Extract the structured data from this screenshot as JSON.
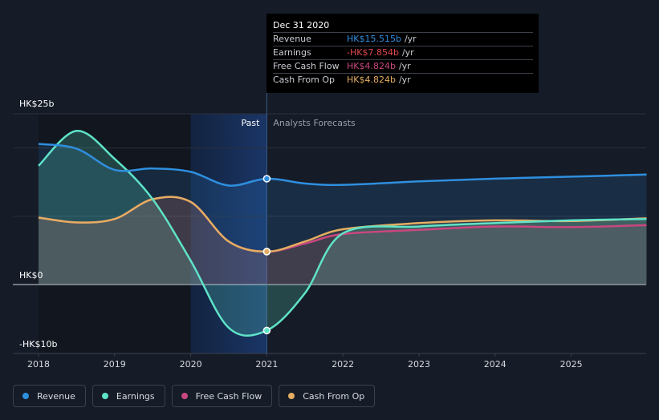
{
  "chart_data": {
    "type": "line",
    "x_ticks": [
      "2018",
      "2019",
      "2020",
      "2021",
      "2022",
      "2023",
      "2024",
      "2025"
    ],
    "y_tick_labels": [
      "HK$25b",
      "HK$0",
      "-HK$10b"
    ],
    "ylim": [
      -10,
      25
    ],
    "xlim": [
      2018,
      2025.99
    ],
    "divider_year": 2021,
    "past_label": "Past",
    "forecast_label": "Analysts Forecasts",
    "series": [
      {
        "name": "Revenue",
        "color": "#2f8fdf",
        "points": [
          [
            2018,
            20.6
          ],
          [
            2018.5,
            19.9
          ],
          [
            2019,
            16.8
          ],
          [
            2019.5,
            17.0
          ],
          [
            2020,
            16.5
          ],
          [
            2020.5,
            14.5
          ],
          [
            2021,
            15.5
          ],
          [
            2021.5,
            14.8
          ],
          [
            2022,
            14.6
          ],
          [
            2023,
            15.1
          ],
          [
            2024,
            15.5
          ],
          [
            2025,
            15.8
          ],
          [
            2025.99,
            16.1
          ]
        ]
      },
      {
        "name": "Earnings",
        "color": "#5fe3c8",
        "points": [
          [
            2018,
            17.4
          ],
          [
            2018.5,
            22.5
          ],
          [
            2019,
            18.4
          ],
          [
            2019.5,
            12.5
          ],
          [
            2020,
            3.5
          ],
          [
            2020.5,
            -7.4
          ],
          [
            2021,
            -7.854
          ],
          [
            2021.5,
            -1.5
          ],
          [
            2022,
            7.5
          ],
          [
            2023,
            8.5
          ],
          [
            2024,
            9.0
          ],
          [
            2025,
            9.4
          ],
          [
            2025.99,
            9.6
          ]
        ]
      },
      {
        "name": "Free Cash Flow",
        "color": "#c9477f",
        "points": [
          [
            2018,
            9.8
          ],
          [
            2018.5,
            9.1
          ],
          [
            2019,
            9.6
          ],
          [
            2019.5,
            12.5
          ],
          [
            2020,
            12.1
          ],
          [
            2020.5,
            6.3
          ],
          [
            2021,
            4.824
          ],
          [
            2021.5,
            6.0
          ],
          [
            2022,
            7.4
          ],
          [
            2023,
            8.0
          ],
          [
            2024,
            8.5
          ],
          [
            2025,
            8.4
          ],
          [
            2025.99,
            8.7
          ]
        ]
      },
      {
        "name": "Cash From Op",
        "color": "#e4ad62",
        "points": [
          [
            2018,
            9.8
          ],
          [
            2018.5,
            9.1
          ],
          [
            2019,
            9.6
          ],
          [
            2019.5,
            12.5
          ],
          [
            2020,
            12.1
          ],
          [
            2020.5,
            6.3
          ],
          [
            2021,
            4.824
          ],
          [
            2021.5,
            6.3
          ],
          [
            2022,
            8.1
          ],
          [
            2023,
            9.0
          ],
          [
            2024,
            9.4
          ],
          [
            2025,
            9.3
          ],
          [
            2025.99,
            9.7
          ]
        ]
      }
    ]
  },
  "tooltip": {
    "date": "Dec 31 2020",
    "unit": "/yr",
    "rows": [
      {
        "label": "Revenue",
        "value": "HK$15.515b",
        "color": "#2f8fdf"
      },
      {
        "label": "Earnings",
        "value": "-HK$7.854b",
        "color": "#e0474c"
      },
      {
        "label": "Free Cash Flow",
        "value": "HK$4.824b",
        "color": "#c9477f"
      },
      {
        "label": "Cash From Op",
        "value": "HK$4.824b",
        "color": "#e4ad62"
      }
    ]
  },
  "legend": [
    {
      "label": "Revenue",
      "color": "#2f8fdf"
    },
    {
      "label": "Earnings",
      "color": "#5fe3c8"
    },
    {
      "label": "Free Cash Flow",
      "color": "#c9477f"
    },
    {
      "label": "Cash From Op",
      "color": "#e4ad62"
    }
  ]
}
